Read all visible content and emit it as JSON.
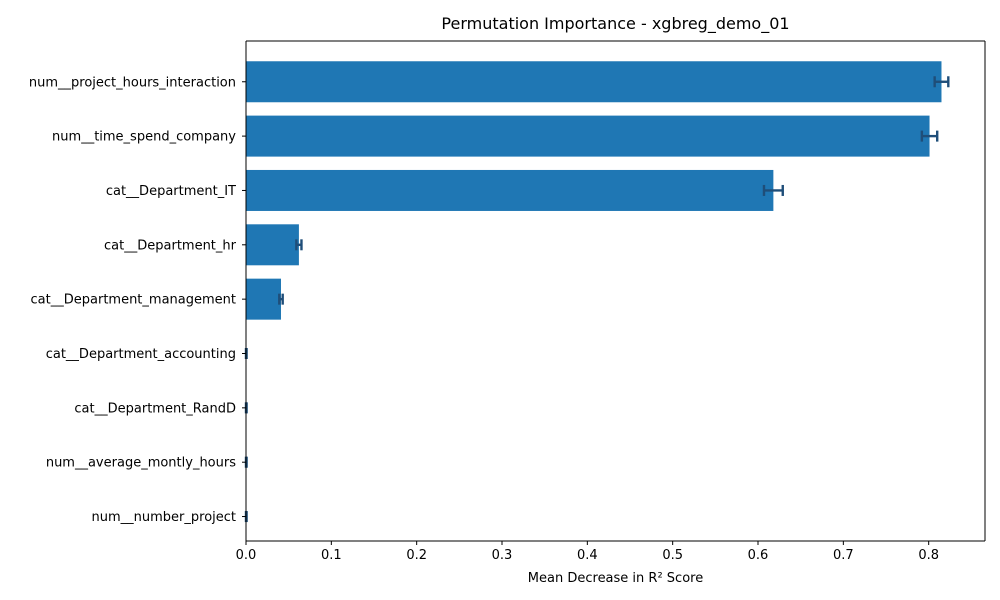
{
  "chart_data": {
    "type": "bar",
    "orientation": "horizontal",
    "title": "Permutation Importance - xgbreg_demo_01",
    "xlabel": "Mean Decrease in R² Score",
    "ylabel": "",
    "xlim": [
      0,
      0.866
    ],
    "xticks": [
      0.0,
      0.1,
      0.2,
      0.3,
      0.4,
      0.5,
      0.6,
      0.7,
      0.8
    ],
    "xtick_labels": [
      "0.0",
      "0.1",
      "0.2",
      "0.3",
      "0.4",
      "0.5",
      "0.6",
      "0.7",
      "0.8"
    ],
    "grid": false,
    "categories": [
      "num__project_hours_interaction",
      "num__time_spend_company",
      "cat__Department_IT",
      "cat__Department_hr",
      "cat__Department_management",
      "cat__Department_accounting",
      "cat__Department_RandD",
      "num__average_montly_hours",
      "num__number_project"
    ],
    "values": [
      0.815,
      0.801,
      0.618,
      0.062,
      0.041,
      0.0,
      0.0,
      0.0,
      0.0
    ],
    "errors": [
      0.008,
      0.009,
      0.011,
      0.003,
      0.002,
      0.0007,
      0.0007,
      0.0007,
      0.0007
    ],
    "bar_color": "#1f77b4",
    "error_color": "#1f4e79"
  }
}
